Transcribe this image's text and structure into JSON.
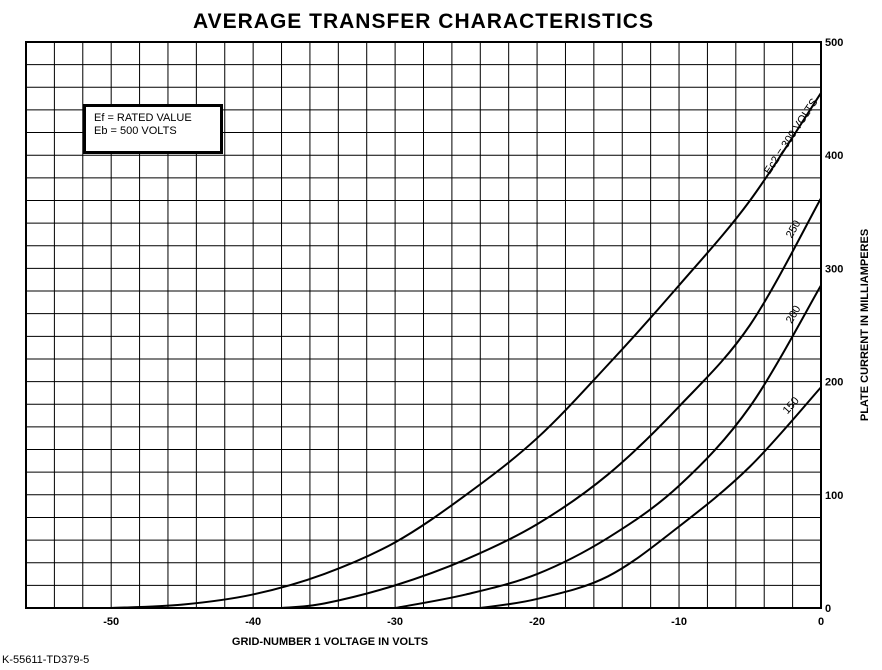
{
  "chart_data": {
    "type": "line",
    "title": "AVERAGE TRANSFER CHARACTERISTICS",
    "xlabel": "GRID-NUMBER 1 VOLTAGE IN VOLTS",
    "ylabel": "PLATE CURRENT IN MILLIAMPERES",
    "xlim": [
      -56,
      0
    ],
    "ylim": [
      0,
      500
    ],
    "x_ticks": [
      -50,
      -40,
      -30,
      -20,
      -10,
      0
    ],
    "x_tick_labels": [
      "-50",
      "-40",
      "-30",
      "-20",
      "-10",
      "0"
    ],
    "y_ticks": [
      0,
      100,
      200,
      300,
      400,
      500
    ],
    "y_tick_labels": [
      "0",
      "100",
      "200",
      "300",
      "400",
      "500"
    ],
    "grid": true,
    "notes": [
      "Ef = RATED VALUE",
      "Eb = 500 VOLTS"
    ],
    "series": [
      {
        "name": "Ec2 = 300 VOLTS",
        "x": [
          -50,
          -45,
          -40,
          -35,
          -30,
          -25,
          -20,
          -15,
          -10,
          -5,
          0
        ],
        "y": [
          0,
          3,
          12,
          30,
          58,
          100,
          150,
          215,
          285,
          360,
          455
        ]
      },
      {
        "name": "250",
        "x": [
          -38,
          -35,
          -30,
          -25,
          -20,
          -15,
          -10,
          -5,
          0
        ],
        "y": [
          0,
          4,
          20,
          43,
          74,
          118,
          178,
          250,
          362
        ]
      },
      {
        "name": "200",
        "x": [
          -30,
          -25,
          -20,
          -15,
          -10,
          -5,
          0
        ],
        "y": [
          0,
          12,
          30,
          62,
          108,
          178,
          285
        ]
      },
      {
        "name": "150",
        "x": [
          -24,
          -20,
          -15,
          -10,
          -5,
          0
        ],
        "y": [
          0,
          8,
          28,
          72,
          125,
          195
        ]
      }
    ],
    "curve_labels": [
      "Ec2 = 300 VOLTS",
      "250",
      "200",
      "150"
    ]
  },
  "footer": {
    "drawing_number": "K-55611-TD379-5"
  }
}
